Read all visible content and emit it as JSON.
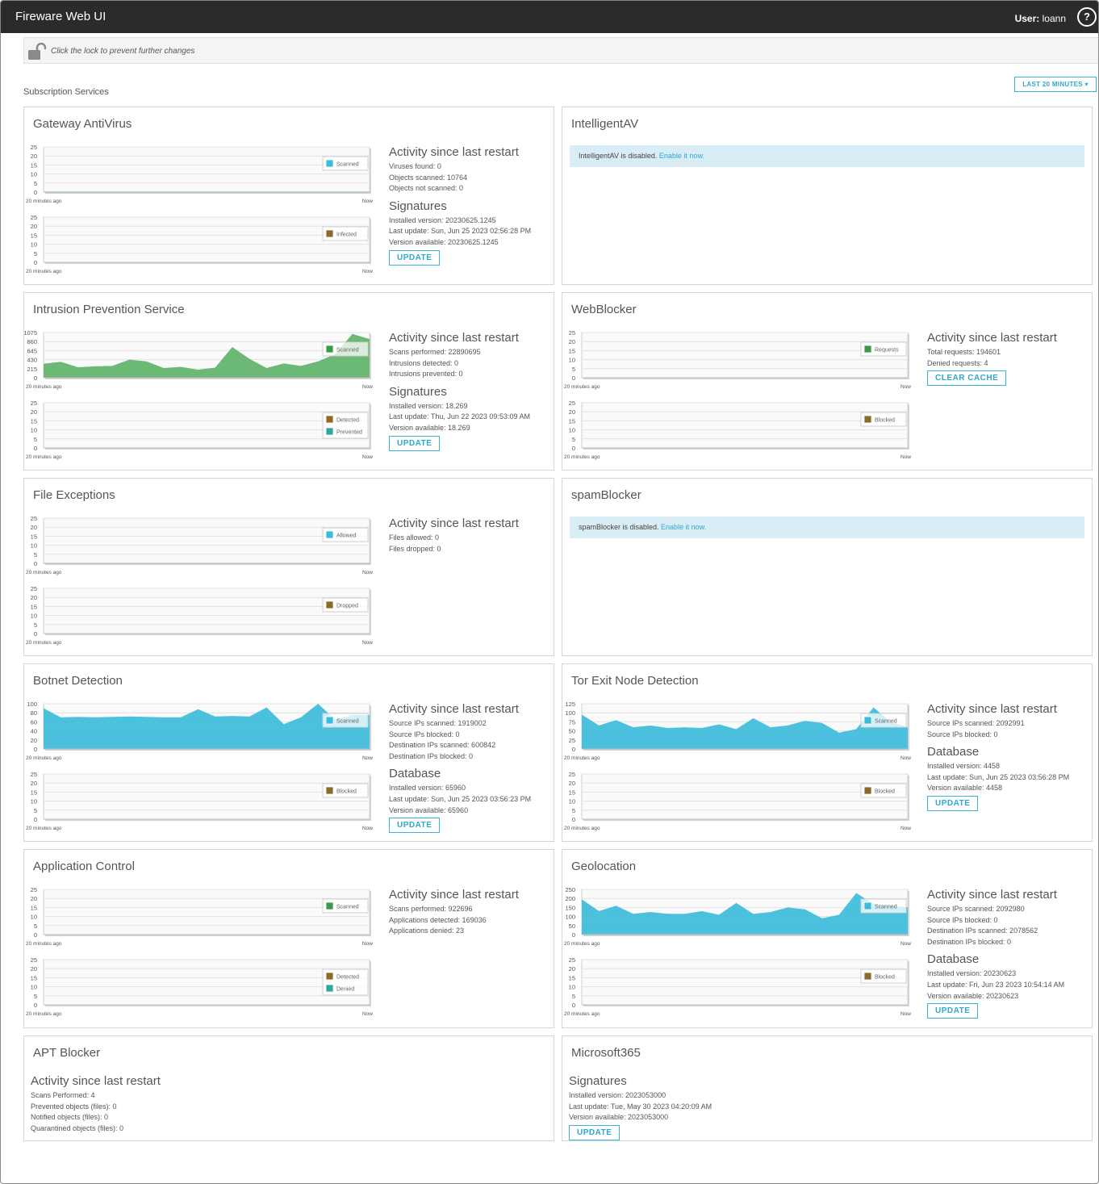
{
  "app": {
    "title": "Fireware Web UI",
    "user_label": "User:",
    "user_name": "loann",
    "help_icon": "?"
  },
  "lockbar": {
    "text": "Click the lock to prevent further changes",
    "icon": "unlock-icon"
  },
  "section": {
    "title": "Subscription Services",
    "range_button": "LAST 20 MINUTES ▾"
  },
  "colors": {
    "scanned": "#3cbcdb",
    "ips_scanned": "#5fb36a",
    "requests": "#3a9a48",
    "brown": "#8a6a26",
    "denied": "#2ea89a",
    "button": "#2ea8cf"
  },
  "chart_common": {
    "x_start": "20 minutes ago",
    "x_end": "Now"
  },
  "panels": [
    {
      "title": "Gateway AntiVirus",
      "charts": [
        {
          "type": "area",
          "yticks": [
            "25",
            "20",
            "15",
            "10",
            "5",
            "0"
          ],
          "ylim": [
            0,
            25
          ],
          "legend": [
            {
              "name": "Scanned",
              "color": "#3cbcdb"
            }
          ],
          "series": [
            {
              "name": "Scanned",
              "color": "#3cbcdb",
              "values": [
                0,
                0,
                0,
                0,
                0,
                0,
                0,
                0,
                0,
                0,
                0,
                0,
                0,
                0,
                0,
                0,
                0,
                0,
                0,
                0
              ]
            }
          ]
        },
        {
          "type": "area",
          "yticks": [
            "25",
            "20",
            "15",
            "10",
            "5",
            "0"
          ],
          "ylim": [
            0,
            25
          ],
          "legend": [
            {
              "name": "Infected",
              "color": "#8a6a26"
            }
          ],
          "series": [
            {
              "name": "Infected",
              "color": "#8a6a26",
              "values": []
            }
          ]
        }
      ],
      "info": [
        {
          "heading": "Activity since last restart",
          "lines": [
            "Viruses found:  0",
            "Objects scanned:  10764",
            "Objects not scanned:  0"
          ]
        },
        {
          "heading": "Signatures",
          "lines": [
            "Installed version:  20230625.1245",
            "Last update:  Sun, Jun 25 2023 02:56:28 PM",
            "Version available:  20230625.1245"
          ],
          "button": "UPDATE"
        }
      ]
    },
    {
      "title": "IntelligentAV",
      "notice": {
        "text": "IntelligentAV is disabled. ",
        "link": "Enable it now."
      }
    },
    {
      "title": "Intrusion Prevention Service",
      "charts": [
        {
          "type": "area",
          "yticks": [
            "1075",
            "860",
            "645",
            "430",
            "215",
            "0"
          ],
          "ylim": [
            0,
            1075
          ],
          "legend": [
            {
              "name": "Scanned",
              "color": "#3a9a48"
            }
          ],
          "series": [
            {
              "name": "Scanned",
              "color": "#5fb36a",
              "values": [
                330,
                380,
                250,
                270,
                280,
                430,
                390,
                230,
                260,
                190,
                240,
                730,
                450,
                230,
                340,
                280,
                390,
                560,
                1040,
                920
              ]
            }
          ]
        },
        {
          "type": "area",
          "yticks": [
            "25",
            "20",
            "15",
            "10",
            "5",
            "0"
          ],
          "ylim": [
            0,
            25
          ],
          "legend": [
            {
              "name": "Detected",
              "color": "#8a6a26"
            },
            {
              "name": "Prevented",
              "color": "#2ea89a"
            }
          ],
          "series": [
            {
              "name": "Detected",
              "color": "#8a6a26",
              "values": []
            }
          ]
        }
      ],
      "info": [
        {
          "heading": "Activity since last restart",
          "lines": [
            "Scans performed:  22890695",
            "Intrusions detected:  0",
            "Intrusions prevented:  0"
          ]
        },
        {
          "heading": "Signatures",
          "lines": [
            "Installed version:  18.269",
            "Last update:  Thu, Jun 22 2023 09:53:09 AM",
            "Version available:  18.269"
          ],
          "button": "UPDATE"
        }
      ]
    },
    {
      "title": "WebBlocker",
      "charts": [
        {
          "type": "area",
          "yticks": [
            "25",
            "20",
            "15",
            "10",
            "5",
            "0"
          ],
          "ylim": [
            0,
            25
          ],
          "legend": [
            {
              "name": "Requests",
              "color": "#3a9a48"
            }
          ],
          "series": [
            {
              "name": "Requests",
              "color": "#3a9a48",
              "values": []
            }
          ]
        },
        {
          "type": "area",
          "yticks": [
            "25",
            "20",
            "15",
            "10",
            "5",
            "0"
          ],
          "ylim": [
            0,
            25
          ],
          "legend": [
            {
              "name": "Blocked",
              "color": "#8a6a26"
            }
          ],
          "series": [
            {
              "name": "Blocked",
              "color": "#8a6a26",
              "values": []
            }
          ]
        }
      ],
      "info": [
        {
          "heading": "Activity since last restart",
          "lines": [
            "Total requests:  194601",
            "Denied requests:  4"
          ],
          "button": "CLEAR CACHE"
        }
      ]
    },
    {
      "title": "File Exceptions",
      "charts": [
        {
          "type": "area",
          "yticks": [
            "25",
            "20",
            "15",
            "10",
            "5",
            "0"
          ],
          "ylim": [
            0,
            25
          ],
          "legend": [
            {
              "name": "Allowed",
              "color": "#3cbcdb"
            }
          ],
          "series": [
            {
              "name": "Allowed",
              "color": "#3cbcdb",
              "values": [
                0,
                0,
                0,
                0,
                0,
                0,
                0,
                0,
                0,
                0,
                0,
                0,
                0,
                0,
                0,
                0,
                0,
                0,
                0,
                0
              ]
            }
          ]
        },
        {
          "type": "area",
          "yticks": [
            "25",
            "20",
            "15",
            "10",
            "5",
            "0"
          ],
          "ylim": [
            0,
            25
          ],
          "legend": [
            {
              "name": "Dropped",
              "color": "#8a6a26"
            }
          ],
          "series": [
            {
              "name": "Dropped",
              "color": "#8a6a26",
              "values": []
            }
          ]
        }
      ],
      "info": [
        {
          "heading": "Activity since last restart",
          "lines": [
            "Files allowed:  0",
            "Files dropped:  0"
          ]
        }
      ]
    },
    {
      "title": "spamBlocker",
      "notice": {
        "text": "spamBlocker is disabled. ",
        "link": "Enable it now."
      }
    },
    {
      "title": "Botnet Detection",
      "charts": [
        {
          "type": "area",
          "yticks": [
            "100",
            "80",
            "60",
            "40",
            "20",
            "0"
          ],
          "ylim": [
            0,
            100
          ],
          "legend": [
            {
              "name": "Scanned",
              "color": "#3cbcdb"
            }
          ],
          "series": [
            {
              "name": "Scanned",
              "color": "#3cbcdb",
              "values": [
                90,
                70,
                71,
                70,
                71,
                72,
                71,
                70,
                70,
                88,
                72,
                73,
                72,
                92,
                55,
                70,
                100,
                65,
                75,
                75
              ]
            }
          ]
        },
        {
          "type": "area",
          "yticks": [
            "25",
            "20",
            "15",
            "10",
            "5",
            "0"
          ],
          "ylim": [
            0,
            25
          ],
          "legend": [
            {
              "name": "Blocked",
              "color": "#8a6a26"
            }
          ],
          "series": [
            {
              "name": "Blocked",
              "color": "#8a6a26",
              "values": []
            }
          ]
        }
      ],
      "info": [
        {
          "heading": "Activity since last restart",
          "lines": [
            "Source IPs scanned:  1919002",
            "Source IPs blocked:  0",
            "Destination IPs scanned:  600842",
            "Destination IPs blocked:  0"
          ]
        },
        {
          "heading": "Database",
          "lines": [
            "Installed version:  65960",
            "Last update:  Sun, Jun 25 2023 03:56:23 PM",
            "Version available:  65960"
          ],
          "button": "UPDATE"
        }
      ]
    },
    {
      "title": "Tor Exit Node Detection",
      "charts": [
        {
          "type": "area",
          "yticks": [
            "125",
            "100",
            "75",
            "50",
            "25",
            "0"
          ],
          "ylim": [
            0,
            125
          ],
          "legend": [
            {
              "name": "Scanned",
              "color": "#3cbcdb"
            }
          ],
          "series": [
            {
              "name": "Scanned",
              "color": "#3cbcdb",
              "values": [
                95,
                65,
                80,
                60,
                65,
                58,
                60,
                58,
                68,
                55,
                85,
                60,
                65,
                78,
                72,
                45,
                55,
                115,
                75,
                60
              ]
            }
          ]
        },
        {
          "type": "area",
          "yticks": [
            "25",
            "20",
            "15",
            "10",
            "5",
            "0"
          ],
          "ylim": [
            0,
            25
          ],
          "legend": [
            {
              "name": "Blocked",
              "color": "#8a6a26"
            }
          ],
          "series": [
            {
              "name": "Blocked",
              "color": "#8a6a26",
              "values": []
            }
          ]
        }
      ],
      "info": [
        {
          "heading": "Activity since last restart",
          "lines": [
            "Source IPs scanned:  2092991",
            "Source IPs blocked:  0"
          ]
        },
        {
          "heading": "Database",
          "lines": [
            "Installed version:  4458",
            "Last update:  Sun, Jun 25 2023 03:56:28 PM",
            "Version available:  4458"
          ],
          "button": "UPDATE"
        }
      ]
    },
    {
      "title": "Application Control",
      "charts": [
        {
          "type": "area",
          "yticks": [
            "25",
            "20",
            "15",
            "10",
            "5",
            "0"
          ],
          "ylim": [
            0,
            25
          ],
          "legend": [
            {
              "name": "Scanned",
              "color": "#3a9a48"
            }
          ],
          "series": [
            {
              "name": "Scanned",
              "color": "#3a9a48",
              "values": []
            }
          ]
        },
        {
          "type": "area",
          "yticks": [
            "25",
            "20",
            "15",
            "10",
            "5",
            "0"
          ],
          "ylim": [
            0,
            25
          ],
          "legend": [
            {
              "name": "Detected",
              "color": "#8a6a26"
            },
            {
              "name": "Denied",
              "color": "#2ea89a"
            }
          ],
          "series": [
            {
              "name": "Detected",
              "color": "#8a6a26",
              "values": []
            }
          ]
        }
      ],
      "info": [
        {
          "heading": "Activity since last restart",
          "lines": [
            "Scans performed:  922696",
            "Applications detected:  169036",
            "Applications denied:  23"
          ]
        }
      ]
    },
    {
      "title": "Geolocation",
      "charts": [
        {
          "type": "area",
          "yticks": [
            "250",
            "200",
            "150",
            "100",
            "50",
            "0"
          ],
          "ylim": [
            0,
            250
          ],
          "legend": [
            {
              "name": "Scanned",
              "color": "#3cbcdb"
            }
          ],
          "series": [
            {
              "name": "Scanned",
              "color": "#3cbcdb",
              "values": [
                195,
                130,
                160,
                115,
                125,
                115,
                115,
                130,
                110,
                175,
                115,
                125,
                150,
                140,
                90,
                110,
                230,
                170,
                160,
                150
              ]
            }
          ]
        },
        {
          "type": "area",
          "yticks": [
            "25",
            "20",
            "15",
            "10",
            "5",
            "0"
          ],
          "ylim": [
            0,
            25
          ],
          "legend": [
            {
              "name": "Blocked",
              "color": "#8a6a26"
            }
          ],
          "series": [
            {
              "name": "Blocked",
              "color": "#8a6a26",
              "values": []
            }
          ]
        }
      ],
      "info": [
        {
          "heading": "Activity since last restart",
          "lines": [
            "Source IPs scanned:  2092980",
            "Source IPs blocked:  0",
            "Destination IPs scanned:  2078562",
            "Destination IPs blocked:  0"
          ]
        },
        {
          "heading": "Database",
          "lines": [
            "Installed version:  20230623",
            "Last update:  Fri, Jun 23 2023 10:54:14 AM",
            "Version available:  20230623"
          ],
          "button": "UPDATE"
        }
      ]
    },
    {
      "title": "APT Blocker",
      "info": [
        {
          "heading": "Activity since last restart",
          "lines": [
            "Scans Performed:  4",
            "Prevented objects (files):  0",
            "Notified objects (files):  0",
            "Quarantined objects (files):  0"
          ]
        }
      ]
    },
    {
      "title": "Microsoft365",
      "info": [
        {
          "heading": "Signatures",
          "lines": [
            "Installed version:  2023053000",
            "Last update:  Tue, May 30 2023 04:20:09 AM",
            "Version available:  2023053000"
          ],
          "button": "UPDATE"
        }
      ]
    }
  ]
}
